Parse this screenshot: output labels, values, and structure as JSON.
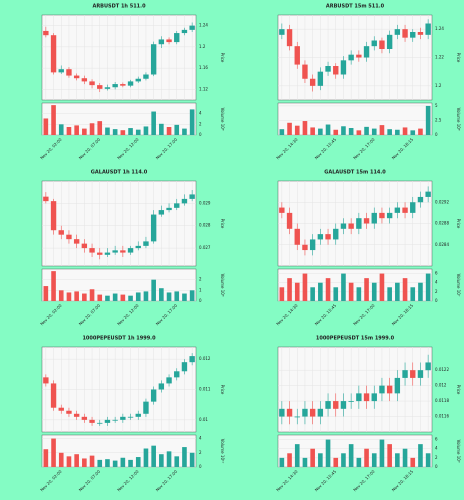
{
  "chart_data": [
    {
      "type": "candlestick",
      "title": "ARBUSDT 1h 511.0",
      "ylabel": "Price",
      "volume_label": "Volume 10⁶",
      "categories": [
        null,
        null,
        "Nov 20, 02:00",
        null,
        null,
        null,
        null,
        "Nov 20, 07:00",
        null,
        null,
        null,
        null,
        "Nov 20, 12:00",
        null,
        null,
        null,
        null,
        "Nov 20, 17:00",
        null,
        null
      ],
      "open": [
        1.23,
        1.222,
        1.152,
        1.158,
        1.146,
        1.141,
        1.135,
        1.128,
        1.121,
        1.124,
        1.13,
        1.127,
        1.135,
        1.14,
        1.148,
        1.205,
        1.214,
        1.209,
        1.226,
        1.232
      ],
      "high": [
        1.238,
        1.226,
        1.165,
        1.162,
        1.15,
        1.146,
        1.139,
        1.132,
        1.129,
        1.134,
        1.133,
        1.138,
        1.144,
        1.152,
        1.21,
        1.22,
        1.218,
        1.23,
        1.236,
        1.246
      ],
      "low": [
        1.218,
        1.148,
        1.149,
        1.142,
        1.137,
        1.13,
        1.122,
        1.115,
        1.118,
        1.12,
        1.124,
        1.124,
        1.132,
        1.137,
        1.145,
        1.198,
        1.205,
        1.205,
        1.222,
        1.228
      ],
      "close": [
        1.222,
        1.152,
        1.158,
        1.146,
        1.141,
        1.135,
        1.128,
        1.121,
        1.124,
        1.13,
        1.127,
        1.135,
        1.14,
        1.148,
        1.205,
        1.214,
        1.209,
        1.226,
        1.232,
        1.24
      ],
      "volume": [
        3.1,
        5.6,
        2.0,
        1.5,
        1.8,
        1.2,
        2.2,
        2.6,
        1.4,
        1.1,
        0.9,
        1.3,
        1.0,
        1.6,
        4.4,
        2.1,
        1.5,
        1.9,
        1.2,
        4.8
      ],
      "ylim": [
        1.1,
        1.26
      ],
      "yticks": [
        1.12,
        1.16,
        1.2,
        1.24
      ],
      "vlim": [
        0,
        6
      ],
      "vticks": [
        0,
        2,
        4
      ],
      "up_color": "#26a69a",
      "down_color": "#ef5350",
      "grid": true
    },
    {
      "type": "candlestick",
      "title": "ARBUSDT 15m 511.0",
      "ylabel": "Price",
      "volume_label": "Volume 10⁶",
      "categories": [
        null,
        null,
        "Nov 20, 14:30",
        null,
        null,
        null,
        null,
        "Nov 20, 15:45",
        null,
        null,
        null,
        null,
        "Nov 20, 17:00",
        null,
        null,
        null,
        null,
        "Nov 20, 18:15",
        null,
        null
      ],
      "open": [
        1.236,
        1.24,
        1.228,
        1.215,
        1.205,
        1.2,
        1.21,
        1.214,
        1.208,
        1.218,
        1.222,
        1.22,
        1.228,
        1.232,
        1.226,
        1.236,
        1.24,
        1.234,
        1.238,
        1.236
      ],
      "high": [
        1.244,
        1.243,
        1.231,
        1.218,
        1.208,
        1.213,
        1.217,
        1.216,
        1.221,
        1.225,
        1.225,
        1.231,
        1.235,
        1.234,
        1.239,
        1.243,
        1.243,
        1.24,
        1.241,
        1.247
      ],
      "low": [
        1.233,
        1.225,
        1.212,
        1.202,
        1.196,
        1.197,
        1.207,
        1.205,
        1.205,
        1.215,
        1.217,
        1.217,
        1.225,
        1.223,
        1.223,
        1.233,
        1.231,
        1.231,
        1.233,
        1.233
      ],
      "close": [
        1.24,
        1.228,
        1.215,
        1.205,
        1.2,
        1.21,
        1.214,
        1.208,
        1.218,
        1.222,
        1.22,
        1.228,
        1.232,
        1.226,
        1.236,
        1.24,
        1.234,
        1.238,
        1.236,
        1.244
      ],
      "volume": [
        1.0,
        2.1,
        1.6,
        2.4,
        1.3,
        1.1,
        1.8,
        0.9,
        1.5,
        1.2,
        0.8,
        1.4,
        1.1,
        1.7,
        1.0,
        0.9,
        1.3,
        0.8,
        1.1,
        5.0
      ],
      "ylim": [
        1.19,
        1.25
      ],
      "yticks": [
        1.2,
        1.22,
        1.24
      ],
      "vlim": [
        0,
        5.5
      ],
      "vticks": [
        0,
        2.5,
        5
      ],
      "up_color": "#26a69a",
      "down_color": "#ef5350",
      "grid": true
    },
    {
      "type": "candlestick",
      "title": "GALAUSDT 1h 114.0",
      "ylabel": "Price",
      "volume_label": "Volume 10⁸",
      "categories": [
        null,
        null,
        "Nov 20, 02:00",
        null,
        null,
        null,
        null,
        "Nov 20, 07:00",
        null,
        null,
        null,
        null,
        "Nov 20, 12:00",
        null,
        null,
        null,
        null,
        "Nov 20, 17:00",
        null,
        null
      ],
      "open": [
        0.0293,
        0.0291,
        0.0278,
        0.0276,
        0.0274,
        0.0272,
        0.027,
        0.0268,
        0.0267,
        0.0268,
        0.0269,
        0.0268,
        0.027,
        0.0271,
        0.0273,
        0.0285,
        0.0287,
        0.0288,
        0.029,
        0.0292
      ],
      "high": [
        0.0295,
        0.0292,
        0.028,
        0.0278,
        0.0276,
        0.0274,
        0.0272,
        0.027,
        0.027,
        0.0271,
        0.0271,
        0.0271,
        0.0273,
        0.0275,
        0.0287,
        0.0289,
        0.029,
        0.0292,
        0.0294,
        0.0296
      ],
      "low": [
        0.029,
        0.0276,
        0.0274,
        0.0272,
        0.027,
        0.0268,
        0.0266,
        0.0265,
        0.0266,
        0.0267,
        0.0266,
        0.0267,
        0.0269,
        0.027,
        0.0272,
        0.0284,
        0.0286,
        0.0287,
        0.0289,
        0.0291
      ],
      "close": [
        0.0291,
        0.0278,
        0.0276,
        0.0274,
        0.0272,
        0.027,
        0.0268,
        0.0267,
        0.0268,
        0.0269,
        0.0268,
        0.027,
        0.0271,
        0.0273,
        0.0285,
        0.0287,
        0.0288,
        0.029,
        0.0292,
        0.0294
      ],
      "volume": [
        1.4,
        2.8,
        1.0,
        0.8,
        0.9,
        0.7,
        1.1,
        0.6,
        0.5,
        0.7,
        0.6,
        0.5,
        0.8,
        0.9,
        2.0,
        1.2,
        0.8,
        0.9,
        0.7,
        1.0
      ],
      "ylim": [
        0.0262,
        0.03
      ],
      "yticks": [
        0.027,
        0.028,
        0.029
      ],
      "vlim": [
        0,
        3
      ],
      "vticks": [
        0,
        1,
        2
      ],
      "up_color": "#26a69a",
      "down_color": "#ef5350",
      "grid": true
    },
    {
      "type": "candlestick",
      "title": "GALAUSDT 15m 114.0",
      "ylabel": "Price",
      "volume_label": "Volume 10⁷",
      "categories": [
        null,
        null,
        "Nov 20, 14:30",
        null,
        null,
        null,
        null,
        "Nov 20, 15:45",
        null,
        null,
        null,
        null,
        "Nov 20, 17:00",
        null,
        null,
        null,
        null,
        "Nov 20, 18:15",
        null,
        null
      ],
      "open": [
        0.0291,
        0.029,
        0.0287,
        0.0284,
        0.0283,
        0.0285,
        0.0286,
        0.0285,
        0.0287,
        0.0288,
        0.0287,
        0.0289,
        0.0288,
        0.029,
        0.0289,
        0.029,
        0.0291,
        0.029,
        0.0292,
        0.0293
      ],
      "high": [
        0.0292,
        0.0291,
        0.0288,
        0.0285,
        0.0286,
        0.0287,
        0.0287,
        0.0288,
        0.0289,
        0.0289,
        0.029,
        0.029,
        0.0291,
        0.0291,
        0.0291,
        0.0292,
        0.0292,
        0.0293,
        0.0294,
        0.0295
      ],
      "low": [
        0.0289,
        0.0286,
        0.0283,
        0.0282,
        0.0282,
        0.0284,
        0.0284,
        0.0284,
        0.0286,
        0.0286,
        0.0286,
        0.0287,
        0.0287,
        0.0288,
        0.0288,
        0.0289,
        0.0289,
        0.0289,
        0.0291,
        0.0292
      ],
      "close": [
        0.029,
        0.0287,
        0.0284,
        0.0283,
        0.0285,
        0.0286,
        0.0285,
        0.0287,
        0.0288,
        0.0287,
        0.0289,
        0.0288,
        0.029,
        0.0289,
        0.029,
        0.0291,
        0.029,
        0.0292,
        0.0293,
        0.0294
      ],
      "volume": [
        3,
        5,
        4,
        6,
        3,
        4,
        5,
        3,
        6,
        4,
        3,
        5,
        4,
        6,
        3,
        4,
        5,
        3,
        4,
        6
      ],
      "ylim": [
        0.028,
        0.0296
      ],
      "yticks": [
        0.0284,
        0.0288,
        0.0292
      ],
      "vlim": [
        0,
        7
      ],
      "vticks": [
        0,
        2,
        4,
        6
      ],
      "up_color": "#26a69a",
      "down_color": "#ef5350",
      "grid": true
    },
    {
      "type": "candlestick",
      "title": "1000PEPEUSDT 1h 1999.0",
      "ylabel": "Price",
      "volume_label": "Volume 10¹⁰",
      "categories": [
        null,
        null,
        "Nov 20, 02:00",
        null,
        null,
        null,
        null,
        "Nov 20, 07:00",
        null,
        null,
        null,
        null,
        "Nov 20, 12:00",
        null,
        null,
        null,
        null,
        "Nov 20, 17:00",
        null,
        null
      ],
      "open": [
        0.0114,
        0.0112,
        0.0104,
        0.0103,
        0.0102,
        0.0101,
        0.01,
        0.0099,
        0.0099,
        0.01,
        0.01,
        0.0101,
        0.0101,
        0.0102,
        0.0106,
        0.011,
        0.0112,
        0.0114,
        0.0116,
        0.0119
      ],
      "high": [
        0.0115,
        0.0113,
        0.0105,
        0.0104,
        0.0103,
        0.0102,
        0.0101,
        0.01,
        0.0101,
        0.0101,
        0.0102,
        0.0102,
        0.0103,
        0.0107,
        0.0111,
        0.0113,
        0.0115,
        0.0117,
        0.012,
        0.0122
      ],
      "low": [
        0.0111,
        0.0103,
        0.0102,
        0.0101,
        0.01,
        0.0099,
        0.0098,
        0.0098,
        0.0098,
        0.0099,
        0.0099,
        0.01,
        0.01,
        0.0101,
        0.0105,
        0.0109,
        0.0111,
        0.0113,
        0.0115,
        0.0118
      ],
      "close": [
        0.0112,
        0.0104,
        0.0103,
        0.0102,
        0.0101,
        0.01,
        0.0099,
        0.0099,
        0.01,
        0.01,
        0.0101,
        0.0101,
        0.0102,
        0.0106,
        0.011,
        0.0112,
        0.0114,
        0.0116,
        0.0119,
        0.0121
      ],
      "volume": [
        2.5,
        4.0,
        2.0,
        1.5,
        1.8,
        1.2,
        1.6,
        1.0,
        1.1,
        0.9,
        1.3,
        1.0,
        1.4,
        2.6,
        3.0,
        1.8,
        2.2,
        1.5,
        2.8,
        2.0
      ],
      "ylim": [
        0.0096,
        0.0124
      ],
      "yticks": [
        0.01,
        0.011,
        0.012
      ],
      "vlim": [
        0,
        4.5
      ],
      "vticks": [
        0,
        2,
        4
      ],
      "up_color": "#26a69a",
      "down_color": "#ef5350",
      "grid": true
    },
    {
      "type": "candlestick",
      "title": "1000PEPEUSDT 15m 1999.0",
      "ylabel": "Price",
      "volume_label": "Volume 10⁹",
      "categories": [
        null,
        null,
        "Nov 20, 14:30",
        null,
        null,
        null,
        null,
        "Nov 20, 15:45",
        null,
        null,
        null,
        null,
        "Nov 20, 17:00",
        null,
        null,
        null,
        null,
        "Nov 20, 18:15",
        null,
        null
      ],
      "open": [
        0.0116,
        0.0117,
        0.0116,
        0.0116,
        0.0117,
        0.0116,
        0.0117,
        0.0118,
        0.0117,
        0.0118,
        0.0118,
        0.0119,
        0.0118,
        0.0119,
        0.012,
        0.0119,
        0.0121,
        0.0122,
        0.0121,
        0.0122
      ],
      "high": [
        0.0118,
        0.0118,
        0.0117,
        0.0118,
        0.0118,
        0.0118,
        0.0119,
        0.0119,
        0.0119,
        0.0119,
        0.012,
        0.012,
        0.012,
        0.0121,
        0.0121,
        0.0122,
        0.0123,
        0.0123,
        0.0123,
        0.0124
      ],
      "low": [
        0.0115,
        0.0115,
        0.0115,
        0.0115,
        0.0115,
        0.0115,
        0.0116,
        0.0116,
        0.0116,
        0.0117,
        0.0117,
        0.0117,
        0.0117,
        0.0118,
        0.0118,
        0.0118,
        0.012,
        0.012,
        0.012,
        0.0121
      ],
      "close": [
        0.0117,
        0.0116,
        0.0116,
        0.0117,
        0.0116,
        0.0117,
        0.0118,
        0.0117,
        0.0118,
        0.0118,
        0.0119,
        0.0118,
        0.0119,
        0.012,
        0.0119,
        0.0121,
        0.0122,
        0.0121,
        0.0122,
        0.0123
      ],
      "volume": [
        2,
        3,
        5,
        2,
        4,
        3,
        6,
        2,
        3,
        5,
        2,
        4,
        3,
        6,
        5,
        3,
        4,
        2,
        5,
        3
      ],
      "ylim": [
        0.0114,
        0.0125
      ],
      "yticks": [
        0.0116,
        0.0118,
        0.012,
        0.0122
      ],
      "vlim": [
        0,
        7
      ],
      "vticks": [
        0,
        2,
        4,
        6
      ],
      "up_color": "#26a69a",
      "down_color": "#ef5350",
      "grid": true
    }
  ]
}
